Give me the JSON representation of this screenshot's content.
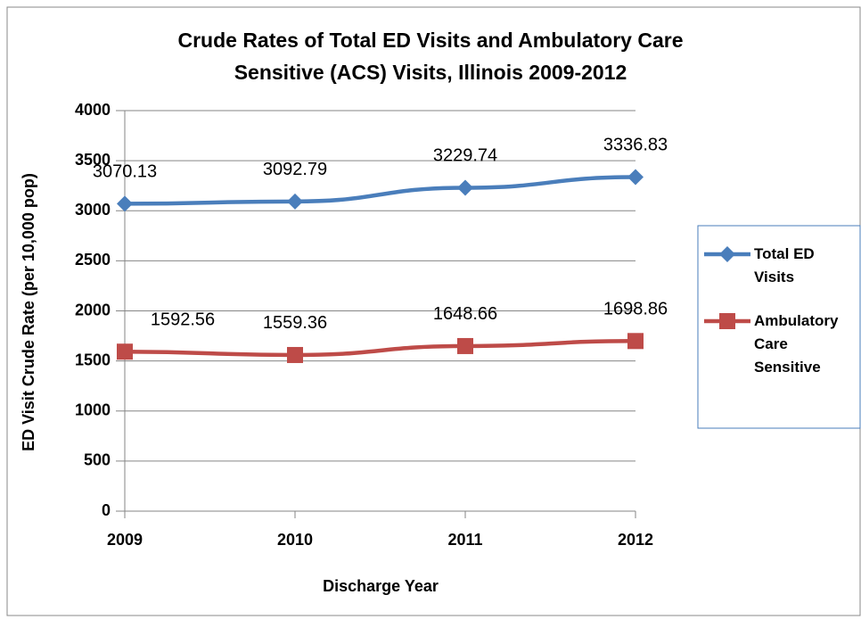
{
  "chart_data": {
    "type": "line",
    "title": [
      "Crude Rates of Total ED Visits and Ambulatory Care",
      "Sensitive (ACS) Visits, Illinois 2009-2012"
    ],
    "y_label": "ED Visit Crude Rate (per 10,000 pop)",
    "x_label": "Discharge Year",
    "categories": [
      "2009",
      "2010",
      "2011",
      "2012"
    ],
    "series": [
      {
        "name": "Total ED Visits",
        "color": "#4a7ebb",
        "marker": "diamond",
        "values": [
          3070.13,
          3092.79,
          3229.74,
          3336.83
        ]
      },
      {
        "name": "Ambulatory Care Sensitive",
        "color": "#be4b48",
        "marker": "square",
        "values": [
          1592.56,
          1559.36,
          1648.66,
          1698.86
        ]
      }
    ],
    "ylim": [
      0,
      4000
    ],
    "yticks": [
      0,
      500,
      1000,
      1500,
      2000,
      2500,
      3000,
      3500,
      4000
    ],
    "grid": true,
    "legend": "right"
  }
}
